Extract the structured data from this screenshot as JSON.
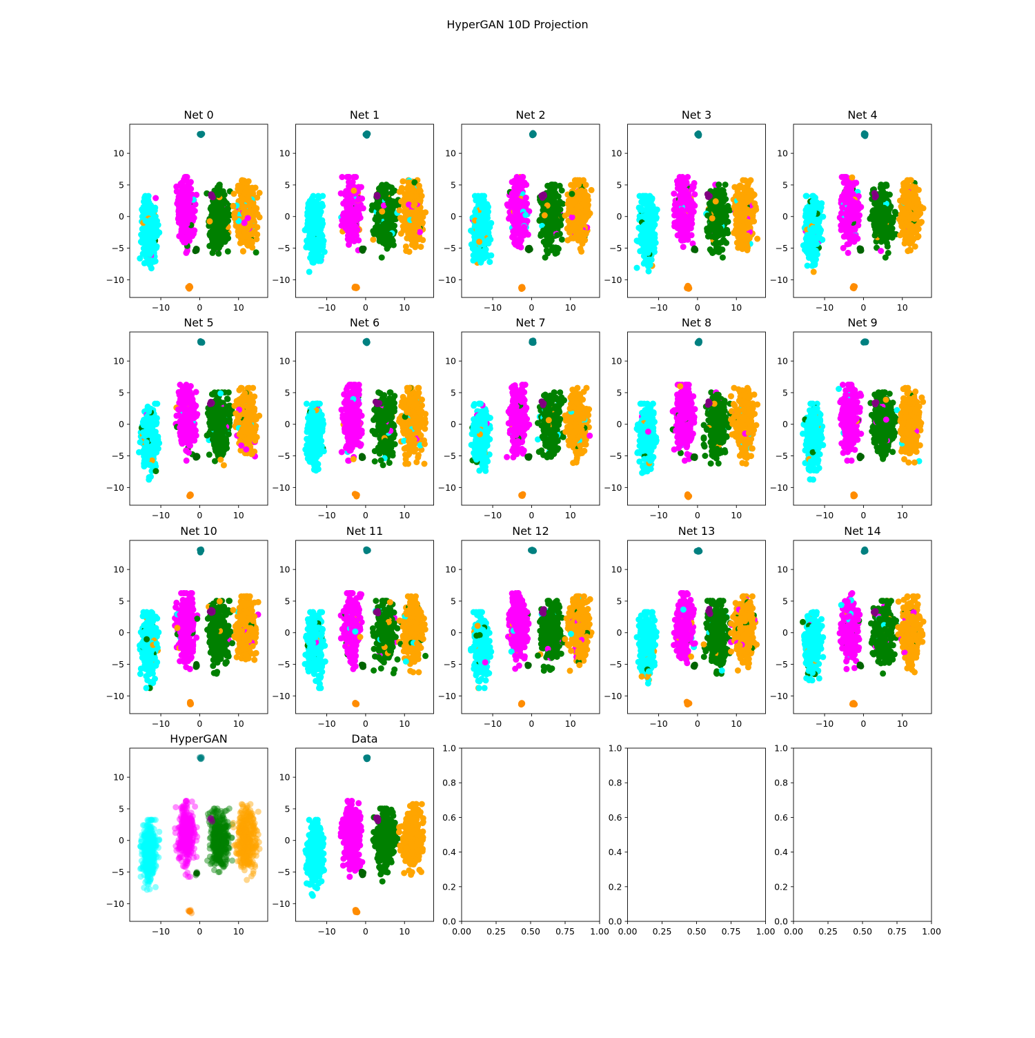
{
  "figure": {
    "title": "HyperGAN 10D Projection"
  },
  "colors": {
    "cyan": "#00ffff",
    "magenta": "#ff00ff",
    "green": "#008000",
    "orange": "#ffa500",
    "teal": "#008080",
    "darkorange": "#ff8c00",
    "darkgreen": "#006400",
    "purple": "#800080"
  },
  "chart_data": {
    "type": "scatter",
    "layout": {
      "rows": 4,
      "cols": 5
    },
    "scatter_axes": {
      "xlim": [
        -18,
        17.5
      ],
      "ylim": [
        -12.8,
        14.6
      ],
      "xticks": [
        -10,
        0,
        10
      ],
      "xtick_labels": [
        "−10",
        "0",
        "10"
      ],
      "yticks": [
        -10,
        -5,
        0,
        5,
        10
      ],
      "ytick_labels": [
        "−10",
        "−5",
        "0",
        "5",
        "10"
      ]
    },
    "empty_axes": {
      "xlim": [
        0,
        1
      ],
      "ylim": [
        0,
        1
      ],
      "xticks": [
        0,
        0.25,
        0.5,
        0.75,
        1
      ],
      "xtick_labels": [
        "0.00",
        "0.25",
        "0.50",
        "0.75",
        "1.00"
      ],
      "yticks": [
        0,
        0.2,
        0.4,
        0.6,
        0.8,
        1
      ],
      "ytick_labels": [
        "0.0",
        "0.2",
        "0.4",
        "0.6",
        "0.8",
        "1.0"
      ]
    },
    "clusters": [
      {
        "color": "cyan",
        "center": [
          -13,
          -2
        ],
        "spread": [
          2.0,
          5.0
        ],
        "count": 380
      },
      {
        "color": "magenta",
        "center": [
          -3.5,
          1
        ],
        "spread": [
          2.2,
          5.0
        ],
        "count": 380
      },
      {
        "color": "green",
        "center": [
          5,
          0
        ],
        "spread": [
          2.6,
          4.8
        ],
        "count": 380
      },
      {
        "color": "orange",
        "center": [
          12,
          0.5
        ],
        "spread": [
          2.6,
          5.0
        ],
        "count": 380
      },
      {
        "color": "teal",
        "center": [
          0.3,
          13
        ],
        "spread": [
          0.35,
          0.25
        ],
        "count": 8
      },
      {
        "color": "darkorange",
        "center": [
          -2.5,
          -11.2
        ],
        "spread": [
          0.35,
          0.25
        ],
        "count": 8
      },
      {
        "color": "darkgreen",
        "center": [
          -0.8,
          -5.2
        ],
        "spread": [
          0.3,
          0.25
        ],
        "count": 8
      },
      {
        "color": "purple",
        "center": [
          3,
          3.3
        ],
        "spread": [
          0.4,
          0.4
        ],
        "count": 6
      }
    ],
    "panels": [
      {
        "title": "Net 0",
        "kind": "scatter",
        "mixing": 0.07
      },
      {
        "title": "Net 1",
        "kind": "scatter",
        "mixing": 0.07
      },
      {
        "title": "Net 2",
        "kind": "scatter",
        "mixing": 0.07
      },
      {
        "title": "Net 3",
        "kind": "scatter",
        "mixing": 0.07
      },
      {
        "title": "Net 4",
        "kind": "scatter",
        "mixing": 0.07
      },
      {
        "title": "Net 5",
        "kind": "scatter",
        "mixing": 0.07
      },
      {
        "title": "Net 6",
        "kind": "scatter",
        "mixing": 0.07
      },
      {
        "title": "Net 7",
        "kind": "scatter",
        "mixing": 0.07
      },
      {
        "title": "Net 8",
        "kind": "scatter",
        "mixing": 0.07
      },
      {
        "title": "Net 9",
        "kind": "scatter",
        "mixing": 0.07
      },
      {
        "title": "Net 10",
        "kind": "scatter",
        "mixing": 0.07
      },
      {
        "title": "Net 11",
        "kind": "scatter",
        "mixing": 0.07
      },
      {
        "title": "Net 12",
        "kind": "scatter",
        "mixing": 0.07
      },
      {
        "title": "Net 13",
        "kind": "scatter",
        "mixing": 0.07
      },
      {
        "title": "Net 14",
        "kind": "scatter",
        "mixing": 0.07
      },
      {
        "title": "HyperGAN",
        "kind": "scatter",
        "mixing": 0.0,
        "alpha": 0.45
      },
      {
        "title": "Data",
        "kind": "scatter",
        "mixing": 0.0
      },
      {
        "title": "",
        "kind": "empty"
      },
      {
        "title": "",
        "kind": "empty"
      },
      {
        "title": "",
        "kind": "empty"
      }
    ]
  }
}
